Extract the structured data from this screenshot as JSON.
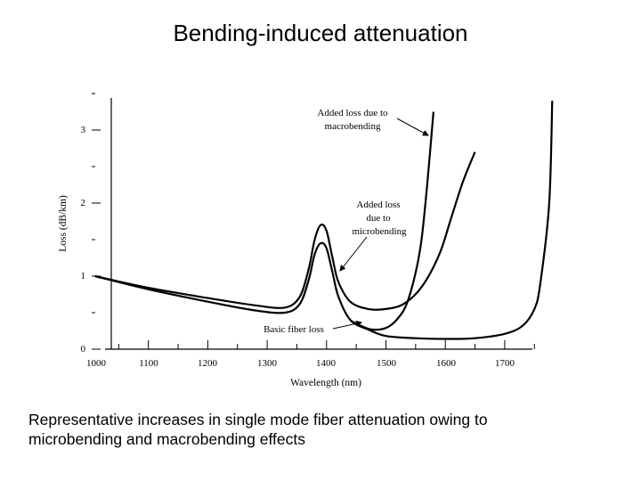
{
  "slide": {
    "title": "Bending-induced attenuation",
    "caption_line1": "Representative increases in single mode fiber attenuation owing to",
    "caption_line2": "microbending and macrobending effects"
  },
  "chart_data": {
    "type": "line",
    "title": "",
    "xlabel": "Wavelength (nm)",
    "ylabel": "Loss (dB/km)",
    "xlim": [
      1000,
      1800
    ],
    "ylim": [
      0,
      3.5
    ],
    "xticks": [
      1000,
      1100,
      1200,
      1300,
      1400,
      1500,
      1600,
      1700
    ],
    "xtick_labels": [
      "1000",
      "1100",
      "1200",
      "1300",
      "1400",
      "1500",
      "1600",
      "1700"
    ],
    "yticks": [
      0,
      1,
      2,
      3
    ],
    "ytick_labels": [
      "0",
      "1",
      "2",
      "3"
    ],
    "grid": false,
    "series": [
      {
        "name": "Basic fiber loss",
        "x": [
          1010,
          1100,
          1200,
          1280,
          1330,
          1355,
          1370,
          1380,
          1390,
          1400,
          1410,
          1420,
          1440,
          1470,
          1500,
          1550,
          1600,
          1650,
          1700,
          1730,
          1750,
          1760,
          1775,
          1780
        ],
        "y": [
          1.0,
          0.82,
          0.65,
          0.53,
          0.5,
          0.62,
          0.95,
          1.3,
          1.45,
          1.38,
          1.05,
          0.72,
          0.4,
          0.27,
          0.18,
          0.15,
          0.14,
          0.15,
          0.21,
          0.32,
          0.55,
          0.9,
          2.0,
          3.4
        ]
      },
      {
        "name": "Added loss due to microbending",
        "x": [
          1010,
          1100,
          1200,
          1280,
          1330,
          1355,
          1370,
          1380,
          1390,
          1400,
          1410,
          1420,
          1440,
          1470,
          1500,
          1530,
          1560,
          1590,
          1610,
          1630,
          1650
        ],
        "y": [
          1.0,
          0.84,
          0.7,
          0.6,
          0.57,
          0.72,
          1.1,
          1.5,
          1.7,
          1.62,
          1.25,
          0.92,
          0.65,
          0.55,
          0.55,
          0.62,
          0.85,
          1.3,
          1.8,
          2.3,
          2.7
        ]
      },
      {
        "name": "Added loss due to macrobending",
        "x": [
          1440,
          1470,
          1490,
          1505,
          1520,
          1535,
          1550,
          1560,
          1570,
          1580
        ],
        "y": [
          0.39,
          0.28,
          0.27,
          0.31,
          0.42,
          0.62,
          1.05,
          1.5,
          2.3,
          3.25
        ]
      }
    ],
    "annotations": [
      {
        "id": "macro",
        "line1": "Added loss due to",
        "line2": "macrobending"
      },
      {
        "id": "micro",
        "line1": "Added loss",
        "line2": "due to",
        "line3": "microbending"
      },
      {
        "id": "basic",
        "line1": "Basic fiber loss"
      }
    ]
  }
}
